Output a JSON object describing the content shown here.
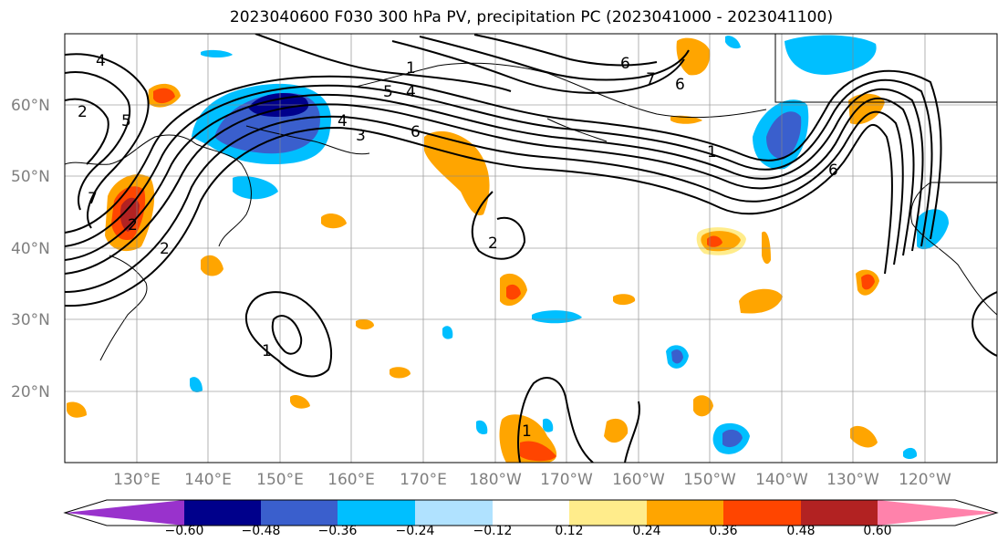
{
  "title": "2023040600 F030 300 hPa PV, precipitation PC (2023041000 - 2023041100)",
  "lat_labels": [
    "60°N",
    "50°N",
    "40°N",
    "30°N",
    "20°N"
  ],
  "lon_labels": [
    "130°E",
    "140°E",
    "150°E",
    "160°E",
    "170°E",
    "180°W",
    "170°W",
    "160°W",
    "150°W",
    "140°W",
    "130°W",
    "120°W"
  ],
  "colorbar": {
    "colors": [
      "#9932cc",
      "#00008b",
      "#3a5fcd",
      "#00bfff",
      "#b0e2ff",
      "#ffffff",
      "#ffffff",
      "#ffec8b",
      "#ffa500",
      "#ff4500",
      "#b22222",
      "#ff82ab"
    ],
    "tick_labels": [
      "−0.60",
      "−0.48",
      "−0.36",
      "−0.24",
      "−0.12",
      "0.12",
      "0.24",
      "0.36",
      "0.48",
      "0.60"
    ]
  },
  "contour_labels": [
    "4",
    "2",
    "5",
    "7",
    "2",
    "2",
    "1",
    "4",
    "5",
    "6",
    "4",
    "3",
    "6",
    "7",
    "6",
    "1",
    "6",
    "2",
    "1",
    "1"
  ],
  "chart_data": {
    "type": "map",
    "title": "2023040600 F030 300 hPa PV, precipitation PC (2023041000 - 2023041100)",
    "lat_range": [
      10,
      70
    ],
    "lon_range": [
      120,
      250
    ],
    "levels": [
      -0.6,
      -0.48,
      -0.36,
      -0.24,
      -0.12,
      0.12,
      0.24,
      0.36,
      0.48,
      0.6
    ]
  }
}
